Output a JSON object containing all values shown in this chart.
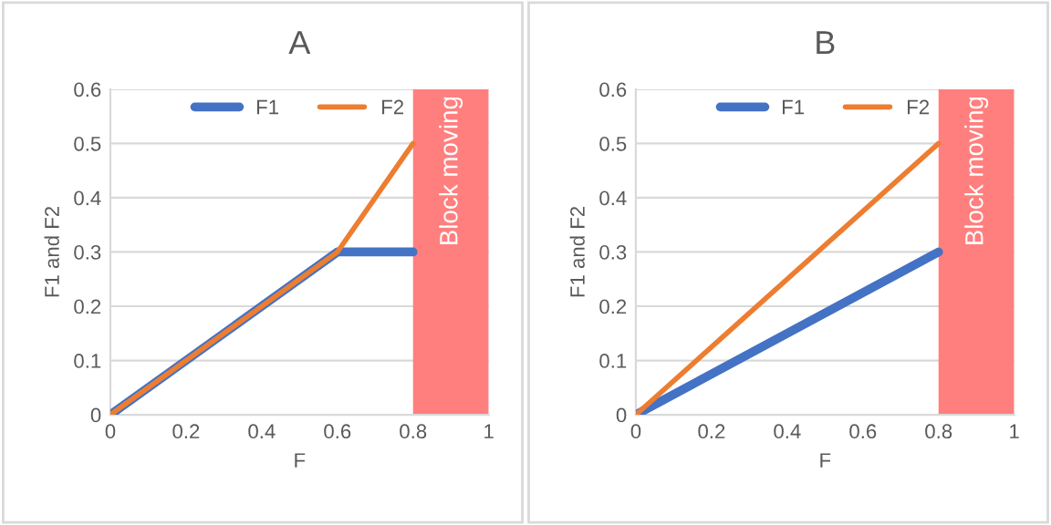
{
  "chart_data": [
    {
      "type": "line",
      "title": "A",
      "xlabel": "F",
      "ylabel": "F1 and F2",
      "x": [
        0,
        0.6,
        0.8
      ],
      "series": [
        {
          "name": "F1",
          "color": "#4472c4",
          "values": [
            0,
            0.3,
            0.3
          ]
        },
        {
          "name": "F2",
          "color": "#ed7d31",
          "values": [
            0,
            0.3,
            0.5
          ]
        }
      ],
      "xlim": [
        0,
        1
      ],
      "ylim": [
        0,
        0.6
      ],
      "xticks": [
        0,
        0.2,
        0.4,
        0.6,
        0.8,
        1
      ],
      "yticks": [
        0,
        0.1,
        0.2,
        0.3,
        0.4,
        0.5,
        0.6
      ],
      "bands": [
        {
          "axis": "x",
          "from": 0.8,
          "to": 1,
          "label": "Block moving",
          "color": "#ff7f7f"
        }
      ],
      "grid": "y",
      "legend": "top",
      "line_style": "solid"
    },
    {
      "type": "line",
      "title": "B",
      "xlabel": "F",
      "ylabel": "F1 and F2",
      "x": [
        0,
        0.8
      ],
      "series": [
        {
          "name": "F1",
          "color": "#4472c4",
          "values": [
            0,
            0.3
          ]
        },
        {
          "name": "F2",
          "color": "#ed7d31",
          "values": [
            0,
            0.5
          ]
        }
      ],
      "xlim": [
        0,
        1
      ],
      "ylim": [
        0,
        0.6
      ],
      "xticks": [
        0,
        0.2,
        0.4,
        0.6,
        0.8,
        1
      ],
      "yticks": [
        0,
        0.1,
        0.2,
        0.3,
        0.4,
        0.5,
        0.6
      ],
      "bands": [
        {
          "axis": "x",
          "from": 0.8,
          "to": 1,
          "label": "Block moving",
          "color": "#ff7f7f"
        }
      ],
      "grid": "y",
      "legend": "top",
      "line_style": "solid"
    }
  ]
}
